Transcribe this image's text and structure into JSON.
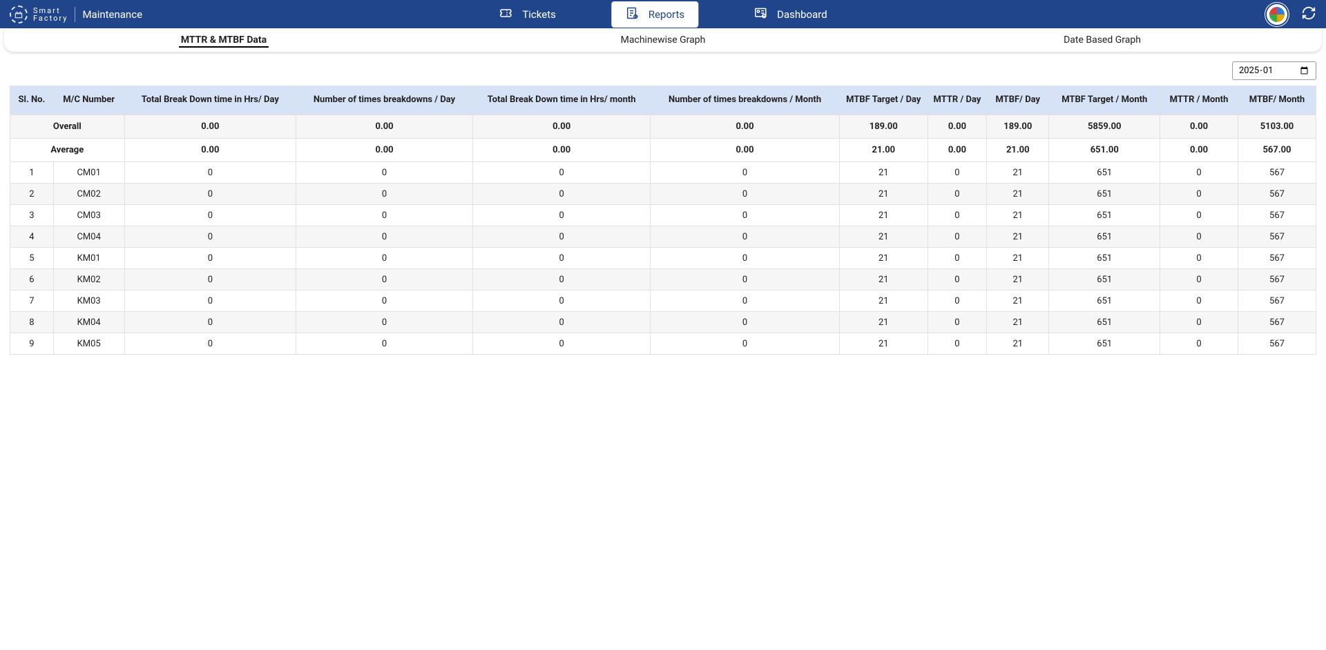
{
  "colors": {
    "topbar_bg": "#20458b",
    "topbar_fg": "#ffffff",
    "header_cell_bg": "#d6e2f5",
    "row_alt_bg": "#f6f6f6",
    "border": "#e1e1e1"
  },
  "brand": {
    "line1": "Smart",
    "line2": "Factory"
  },
  "page_title": "Maintenance",
  "nav": {
    "tickets": "Tickets",
    "reports": "Reports",
    "dashboard": "Dashboard",
    "active": "reports"
  },
  "subtabs": {
    "mttr_mtbf": "MTTR & MTBF Data",
    "machinewise": "Machinewise Graph",
    "datebased": "Date Based Graph",
    "active": "mttr_mtbf"
  },
  "filter": {
    "month_value": "2025-01",
    "month_display": "January, 2025"
  },
  "table": {
    "columns": [
      "Sl. No.",
      "M/C Number",
      "Total Break Down time in Hrs/ Day",
      "Number of times breakdowns / Day",
      "Total Break Down time in Hrs/ month",
      "Number of times breakdowns / Month",
      "MTBF Target / Day",
      "MTTR / Day",
      "MTBF/ Day",
      "MTBF Target / Month",
      "MTTR / Month",
      "MTBF/ Month"
    ],
    "summary": {
      "overall": {
        "label": "Overall",
        "values": [
          "0.00",
          "0.00",
          "0.00",
          "0.00",
          "189.00",
          "0.00",
          "189.00",
          "5859.00",
          "0.00",
          "5103.00"
        ]
      },
      "average": {
        "label": "Average",
        "values": [
          "0.00",
          "0.00",
          "0.00",
          "0.00",
          "21.00",
          "0.00",
          "21.00",
          "651.00",
          "0.00",
          "567.00"
        ]
      }
    },
    "rows": [
      {
        "sl": "1",
        "mc": "CM01",
        "v": [
          "0",
          "0",
          "0",
          "0",
          "21",
          "0",
          "21",
          "651",
          "0",
          "567"
        ]
      },
      {
        "sl": "2",
        "mc": "CM02",
        "v": [
          "0",
          "0",
          "0",
          "0",
          "21",
          "0",
          "21",
          "651",
          "0",
          "567"
        ]
      },
      {
        "sl": "3",
        "mc": "CM03",
        "v": [
          "0",
          "0",
          "0",
          "0",
          "21",
          "0",
          "21",
          "651",
          "0",
          "567"
        ]
      },
      {
        "sl": "4",
        "mc": "CM04",
        "v": [
          "0",
          "0",
          "0",
          "0",
          "21",
          "0",
          "21",
          "651",
          "0",
          "567"
        ]
      },
      {
        "sl": "5",
        "mc": "KM01",
        "v": [
          "0",
          "0",
          "0",
          "0",
          "21",
          "0",
          "21",
          "651",
          "0",
          "567"
        ]
      },
      {
        "sl": "6",
        "mc": "KM02",
        "v": [
          "0",
          "0",
          "0",
          "0",
          "21",
          "0",
          "21",
          "651",
          "0",
          "567"
        ]
      },
      {
        "sl": "7",
        "mc": "KM03",
        "v": [
          "0",
          "0",
          "0",
          "0",
          "21",
          "0",
          "21",
          "651",
          "0",
          "567"
        ]
      },
      {
        "sl": "8",
        "mc": "KM04",
        "v": [
          "0",
          "0",
          "0",
          "0",
          "21",
          "0",
          "21",
          "651",
          "0",
          "567"
        ]
      },
      {
        "sl": "9",
        "mc": "KM05",
        "v": [
          "0",
          "0",
          "0",
          "0",
          "21",
          "0",
          "21",
          "651",
          "0",
          "567"
        ]
      }
    ]
  }
}
